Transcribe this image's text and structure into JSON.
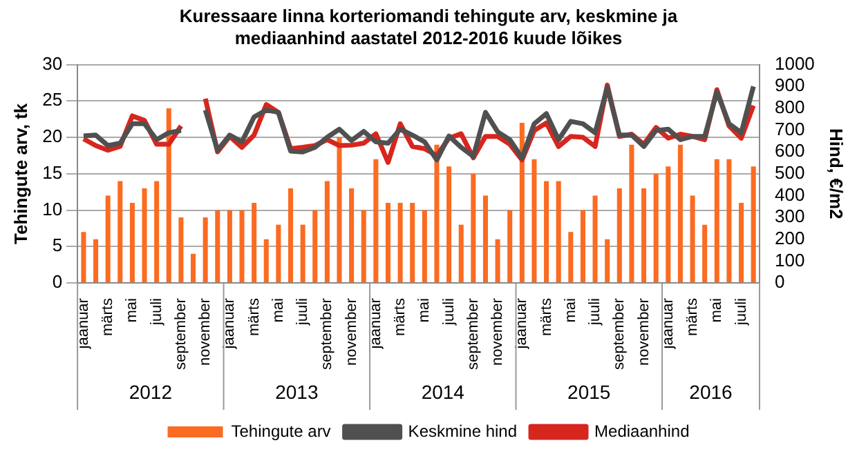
{
  "chart_data": {
    "type": "bar",
    "title": "Kuressaare linna korteriomandi tehingute arv, keskmine ja mediaanhind aastatel 2012-2016 kuude lõikes",
    "ylabel": "Tehingute arv, tk",
    "y2label": "Hind, €/m2",
    "categories": [
      "jaanuar",
      null,
      "märts",
      null,
      "mai",
      null,
      "juuli",
      null,
      "september",
      null,
      "november",
      null,
      "jaanuar",
      null,
      "märts",
      null,
      "mai",
      null,
      "juuli",
      null,
      "september",
      null,
      "november",
      null,
      "jaanuar",
      null,
      "märts",
      null,
      "mai",
      null,
      "juuli",
      null,
      "september",
      null,
      "november",
      null,
      "jaanuar",
      null,
      "märts",
      null,
      "mai",
      null,
      "juuli",
      null,
      "september",
      null,
      "november",
      null,
      "jaanuar",
      null,
      "märts",
      null,
      "mai",
      null,
      "juuli",
      null
    ],
    "annotations": [
      "2012",
      "2013",
      "2014",
      "2015",
      "2016"
    ],
    "series": [
      {
        "name": "Tehingute arv",
        "color": "#fb6b21",
        "values": [
          7,
          6,
          12,
          14,
          11,
          13,
          14,
          24,
          9,
          4,
          9,
          10,
          10,
          10,
          11,
          6,
          8,
          13,
          8,
          10,
          14,
          20,
          13,
          10,
          17,
          11,
          11,
          11,
          10,
          19,
          16,
          8,
          15,
          12,
          6,
          10,
          22,
          17,
          14,
          14,
          7,
          10,
          12,
          6,
          13,
          19,
          13,
          15,
          16,
          19,
          12,
          8,
          17,
          17,
          11,
          16
        ]
      },
      {
        "name": "Keskmine hind",
        "type": "line",
        "axis": "y2",
        "color": "#505050",
        "values": [
          673,
          677,
          629,
          640,
          729,
          729,
          656,
          688,
          698,
          null,
          792,
          608,
          677,
          646,
          760,
          792,
          781,
          604,
          600,
          621,
          667,
          704,
          652,
          694,
          646,
          640,
          704,
          677,
          646,
          563,
          673,
          621,
          579,
          781,
          692,
          656,
          573,
          729,
          775,
          656,
          740,
          729,
          688,
          896,
          677,
          677,
          625,
          698,
          704,
          656,
          671,
          671,
          875,
          729,
          688,
          900
        ]
      },
      {
        "name": "Mediaanhind",
        "type": "line",
        "axis": "y2",
        "color": "#d7261e",
        "values": [
          660,
          629,
          608,
          625,
          765,
          744,
          635,
          635,
          719,
          null,
          844,
          600,
          671,
          621,
          677,
          817,
          781,
          615,
          621,
          629,
          656,
          629,
          631,
          640,
          683,
          552,
          729,
          625,
          615,
          583,
          663,
          683,
          573,
          671,
          671,
          635,
          563,
          698,
          733,
          625,
          671,
          667,
          625,
          906,
          671,
          681,
          635,
          712,
          663,
          681,
          671,
          656,
          885,
          719,
          663,
          812
        ]
      }
    ],
    "ylim": [
      0,
      30
    ],
    "yticks": [
      0,
      5,
      10,
      15,
      20,
      25,
      30
    ],
    "y2lim": [
      0,
      1000
    ],
    "y2ticks": [
      0,
      100,
      200,
      300,
      400,
      500,
      600,
      700,
      800,
      900,
      1000
    ],
    "grid": "y",
    "legend": "bottom"
  }
}
